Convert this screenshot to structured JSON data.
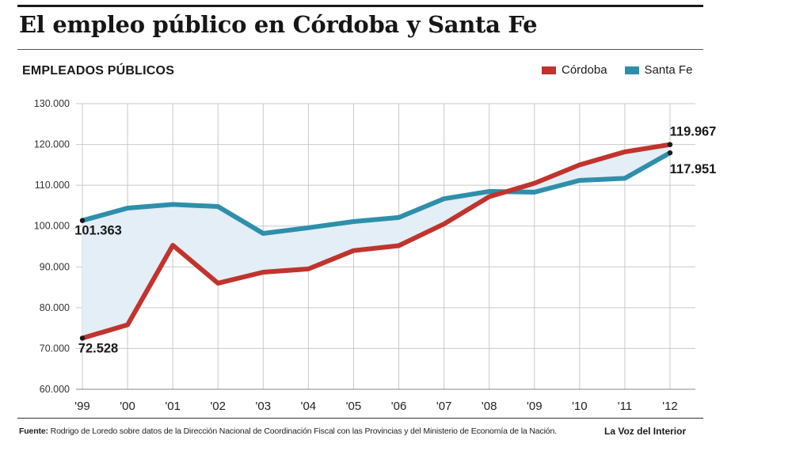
{
  "title": "El empleo público en Córdoba y Santa Fe",
  "section_label": "EMPLEADOS PÚBLICOS",
  "source_label": "Fuente:",
  "source_text": "Rodrigo de Loredo sobre datos de la Dirección Nacional de Coordinación Fiscal con las Provincias y del Ministerio de Economía de la Nación.",
  "credit": "La Voz del Interior",
  "chart_data": {
    "type": "line",
    "x": [
      "'99",
      "'00",
      "'01",
      "'02",
      "'03",
      "'04",
      "'05",
      "'06",
      "'07",
      "'08",
      "'09",
      "'10",
      "'11",
      "'12"
    ],
    "ylim": [
      60000,
      130000
    ],
    "yticks": [
      {
        "value": 60000,
        "label": "60.000"
      },
      {
        "value": 70000,
        "label": "70.000"
      },
      {
        "value": 80000,
        "label": "80.000"
      },
      {
        "value": 90000,
        "label": "90.000"
      },
      {
        "value": 100000,
        "label": "100.000"
      },
      {
        "value": 110000,
        "label": "110.000"
      },
      {
        "value": 120000,
        "label": "120.000"
      },
      {
        "value": 130000,
        "label": "130.000"
      }
    ],
    "grid": true,
    "legend_position": "top-right",
    "shaded_between_series": true,
    "series": [
      {
        "name": "Córdoba",
        "color": "#c0342d",
        "values": [
          72528,
          75800,
          95300,
          86000,
          88700,
          89500,
          94000,
          95200,
          100500,
          107200,
          110500,
          115000,
          118200,
          119967
        ]
      },
      {
        "name": "Santa Fe",
        "color": "#2e8faa",
        "values": [
          101363,
          104400,
          105300,
          104800,
          98200,
          99600,
          101100,
          102100,
          106700,
          108500,
          108300,
          111200,
          111700,
          117951
        ]
      }
    ],
    "annotations": [
      {
        "series": 1,
        "index": 0,
        "label": "101.363",
        "placement": "below"
      },
      {
        "series": 0,
        "index": 0,
        "label": "72.528",
        "placement": "below"
      },
      {
        "series": 0,
        "index": 13,
        "label": "119.967",
        "placement": "above"
      },
      {
        "series": 1,
        "index": 13,
        "label": "117.951",
        "placement": "below"
      }
    ],
    "fill_color": "#e3eef6",
    "grid_color": "#c9c9c9"
  }
}
